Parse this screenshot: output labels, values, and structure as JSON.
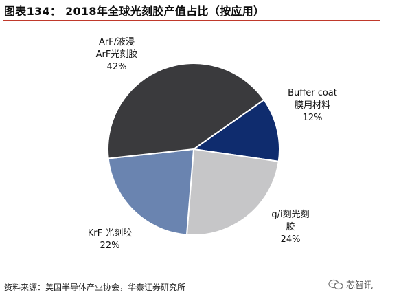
{
  "header": {
    "title": "图表134： 2018年全球光刻胶产值占比（按应用）"
  },
  "footer": {
    "source": "资料来源：美国半导体产业协会，华泰证券研究所",
    "watermark": "芯智讯"
  },
  "chart_data": {
    "type": "pie",
    "title": "2018年全球光刻胶产值占比（按应用）",
    "start_angle_deg": 55,
    "direction": "clockwise",
    "slices": [
      {
        "name_line1": "Buffer coat",
        "name_line2": "膜用材料",
        "value": 12,
        "percent_label": "12%",
        "color": "#0f2c6e"
      },
      {
        "name_line1": "g/i刻光刻",
        "name_line2": "胶",
        "value": 24,
        "percent_label": "24%",
        "color": "#c6c6c8"
      },
      {
        "name_line1": "KrF 光刻胶",
        "name_line2": "",
        "value": 22,
        "percent_label": "22%",
        "color": "#6a84b0"
      },
      {
        "name_line1": "ArF/液浸",
        "name_line2": "ArF光刻胶",
        "value": 42,
        "percent_label": "42%",
        "color": "#3a3a3d"
      }
    ]
  }
}
